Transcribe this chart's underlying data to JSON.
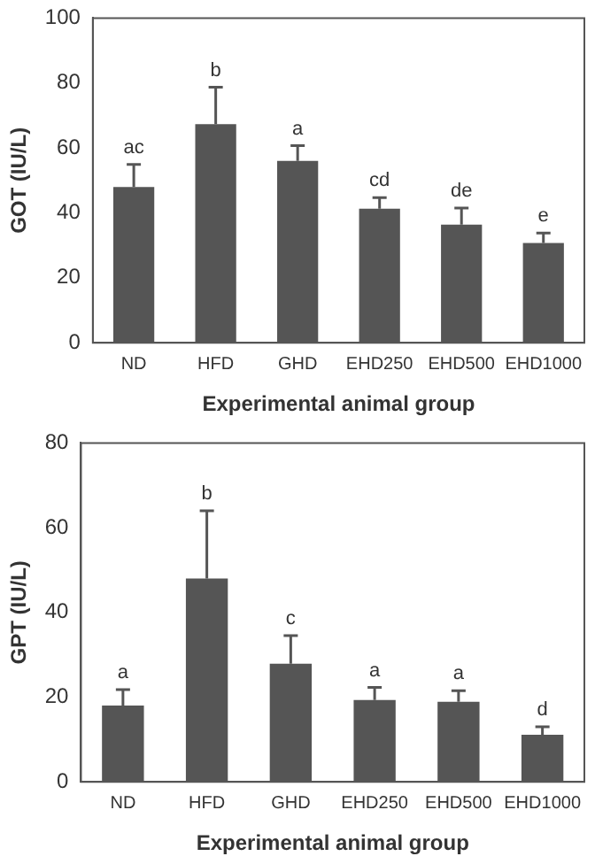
{
  "chart_data": [
    {
      "type": "bar",
      "xlabel": "Experimental animal group",
      "ylabel": "GOT (IU/L)",
      "categories": [
        "ND",
        "HFD",
        "GHD",
        "EHD250",
        "EHD500",
        "EHD1000"
      ],
      "color": "#555555",
      "values": [
        48,
        67.3,
        56,
        41.3,
        36.4,
        30.7
      ],
      "errors": [
        [
          48,
          54.9
        ],
        [
          67.3,
          78.7
        ],
        [
          56,
          60.7
        ],
        [
          41.3,
          44.7
        ],
        [
          36.4,
          41.5
        ],
        [
          30.7,
          33.8
        ]
      ],
      "ylim": [
        0,
        100
      ],
      "yticks": [
        0,
        20,
        40,
        60,
        80,
        100
      ],
      "grid": false,
      "legend": false,
      "annotations": [
        {
          "text": "ac",
          "x": "ND",
          "y": 54.9
        },
        {
          "text": "b",
          "x": "HFD",
          "y": 78.7
        },
        {
          "text": "a",
          "x": "GHD",
          "y": 60.7
        },
        {
          "text": "cd",
          "x": "EHD250",
          "y": 44.7
        },
        {
          "text": "de",
          "x": "EHD500",
          "y": 41.5
        },
        {
          "text": "e",
          "x": "EHD1000",
          "y": 33.8
        }
      ]
    },
    {
      "type": "bar",
      "xlabel": "Experimental animal group",
      "ylabel": "GPT (IU/L)",
      "categories": [
        "ND",
        "HFD",
        "GHD",
        "EHD250",
        "EHD500",
        "EHD1000"
      ],
      "color": "#555555",
      "values": [
        18,
        48,
        27.9,
        19.3,
        18.9,
        11.1
      ],
      "errors": [
        [
          18,
          21.8
        ],
        [
          48,
          64
        ],
        [
          27.9,
          34.5
        ],
        [
          19.3,
          22.3
        ],
        [
          18.9,
          21.5
        ],
        [
          11.1,
          13
        ]
      ],
      "ylim": [
        0,
        80
      ],
      "yticks": [
        0,
        20,
        40,
        60,
        80
      ],
      "grid": false,
      "legend": false,
      "annotations": [
        {
          "text": "a",
          "x": "ND",
          "y": 21.8
        },
        {
          "text": "b",
          "x": "HFD",
          "y": 64
        },
        {
          "text": "c",
          "x": "GHD",
          "y": 34.5
        },
        {
          "text": "a",
          "x": "EHD250",
          "y": 22.3
        },
        {
          "text": "a",
          "x": "EHD500",
          "y": 21.5
        },
        {
          "text": "d",
          "x": "EHD1000",
          "y": 13
        }
      ]
    }
  ]
}
